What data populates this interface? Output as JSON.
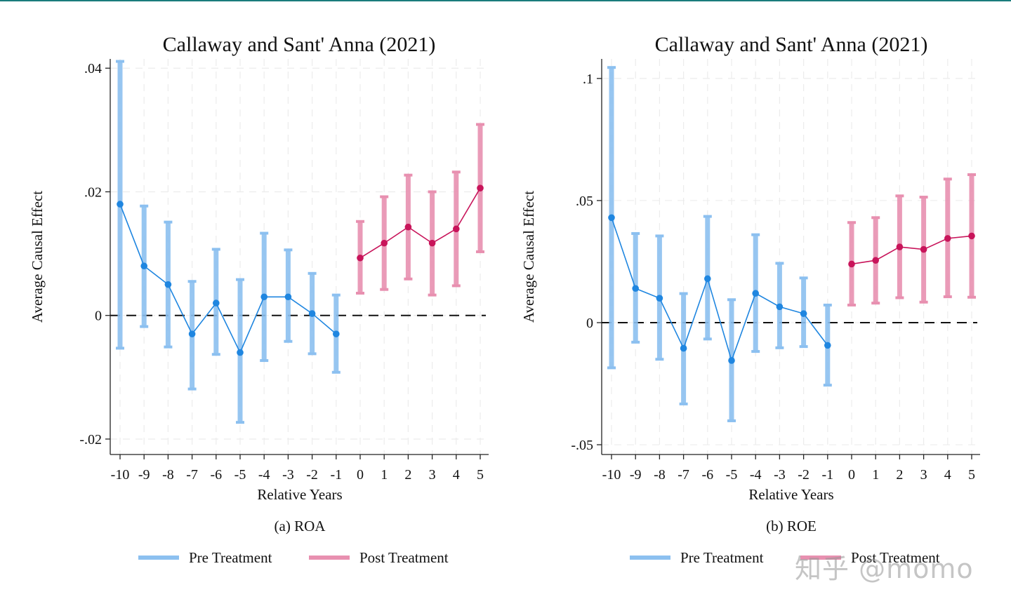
{
  "chart_data": [
    {
      "type": "scatter",
      "title": "Callaway and Sant' Anna (2021)",
      "caption": "(a) ROA",
      "xlabel": "Relative Years",
      "ylabel": "Average Causal Effect",
      "ylim": [
        -0.0225,
        0.0415
      ],
      "yticks": [
        -0.02,
        0,
        0.02,
        0.04
      ],
      "ytick_labels": [
        "-.02",
        "0",
        ".02",
        ".04"
      ],
      "x": [
        -10,
        -9,
        -8,
        -7,
        -6,
        -5,
        -4,
        -3,
        -2,
        -1,
        0,
        1,
        2,
        3,
        4,
        5
      ],
      "x_labels": [
        "-10",
        "-9",
        "-8",
        "-7",
        "-6",
        "-5",
        "-4",
        "-3",
        "-2",
        "-1",
        "0",
        "1",
        "2",
        "3",
        "4",
        "5"
      ],
      "reference_line": 0,
      "grid": true,
      "legend_position": "bottom",
      "series": [
        {
          "name": "Pre Treatment",
          "color": "#1f86e0",
          "ci_color": "#8cc0f0",
          "x": [
            -10,
            -9,
            -8,
            -7,
            -6,
            -5,
            -4,
            -3,
            -2,
            -1
          ],
          "estimate": [
            0.018,
            0.008,
            0.005,
            -0.003,
            0.002,
            -0.006,
            0.003,
            0.003,
            0.0003,
            -0.003
          ],
          "lower": [
            -0.0053,
            -0.0018,
            -0.0051,
            -0.0119,
            -0.0063,
            -0.0173,
            -0.0073,
            -0.0042,
            -0.0062,
            -0.0092
          ],
          "upper": [
            0.0411,
            0.0177,
            0.0151,
            0.0055,
            0.0107,
            0.0058,
            0.0133,
            0.0106,
            0.0068,
            0.0033
          ]
        },
        {
          "name": "Post Treatment",
          "color": "#c8145a",
          "ci_color": "#e890b0",
          "x": [
            0,
            1,
            2,
            3,
            4,
            5
          ],
          "estimate": [
            0.0093,
            0.0117,
            0.0143,
            0.0117,
            0.014,
            0.0206
          ],
          "lower": [
            0.0036,
            0.0042,
            0.0059,
            0.0033,
            0.0048,
            0.0103
          ],
          "upper": [
            0.0152,
            0.0192,
            0.0227,
            0.02,
            0.0232,
            0.0309
          ]
        }
      ]
    },
    {
      "type": "scatter",
      "title": "Callaway and Sant' Anna (2021)",
      "caption": "(b) ROE",
      "xlabel": "Relative Years",
      "ylabel": "Average Causal Effect",
      "ylim": [
        -0.054,
        0.108
      ],
      "yticks": [
        -0.05,
        0,
        0.05,
        0.1
      ],
      "ytick_labels": [
        "-.05",
        "0",
        ".05",
        ".1"
      ],
      "x": [
        -10,
        -9,
        -8,
        -7,
        -6,
        -5,
        -4,
        -3,
        -2,
        -1,
        0,
        1,
        2,
        3,
        4,
        5
      ],
      "x_labels": [
        "-10",
        "-9",
        "-8",
        "-7",
        "-6",
        "-5",
        "-4",
        "-3",
        "-2",
        "-1",
        "0",
        "1",
        "2",
        "3",
        "4",
        "5"
      ],
      "reference_line": 0,
      "grid": true,
      "legend_position": "bottom",
      "series": [
        {
          "name": "Pre Treatment",
          "color": "#1f86e0",
          "ci_color": "#8cc0f0",
          "x": [
            -10,
            -9,
            -8,
            -7,
            -6,
            -5,
            -4,
            -3,
            -2,
            -1
          ],
          "estimate": [
            0.043,
            0.014,
            0.01,
            -0.0105,
            0.018,
            -0.0155,
            0.012,
            0.0065,
            0.0037,
            -0.0093
          ],
          "lower": [
            -0.0185,
            -0.008,
            -0.015,
            -0.0333,
            -0.0067,
            -0.0402,
            -0.0118,
            -0.0103,
            -0.0098,
            -0.0256
          ],
          "upper": [
            0.1045,
            0.0365,
            0.0355,
            0.0119,
            0.0435,
            0.0094,
            0.036,
            0.0243,
            0.0183,
            0.0072
          ]
        },
        {
          "name": "Post Treatment",
          "color": "#c8145a",
          "ci_color": "#e890b0",
          "x": [
            0,
            1,
            2,
            3,
            4,
            5
          ],
          "estimate": [
            0.024,
            0.0255,
            0.031,
            0.03,
            0.0345,
            0.0355
          ],
          "lower": [
            0.0072,
            0.008,
            0.0102,
            0.0084,
            0.0106,
            0.0104
          ],
          "upper": [
            0.041,
            0.043,
            0.0519,
            0.0514,
            0.0588,
            0.0606
          ]
        }
      ]
    }
  ],
  "watermark": "知乎 @momo"
}
